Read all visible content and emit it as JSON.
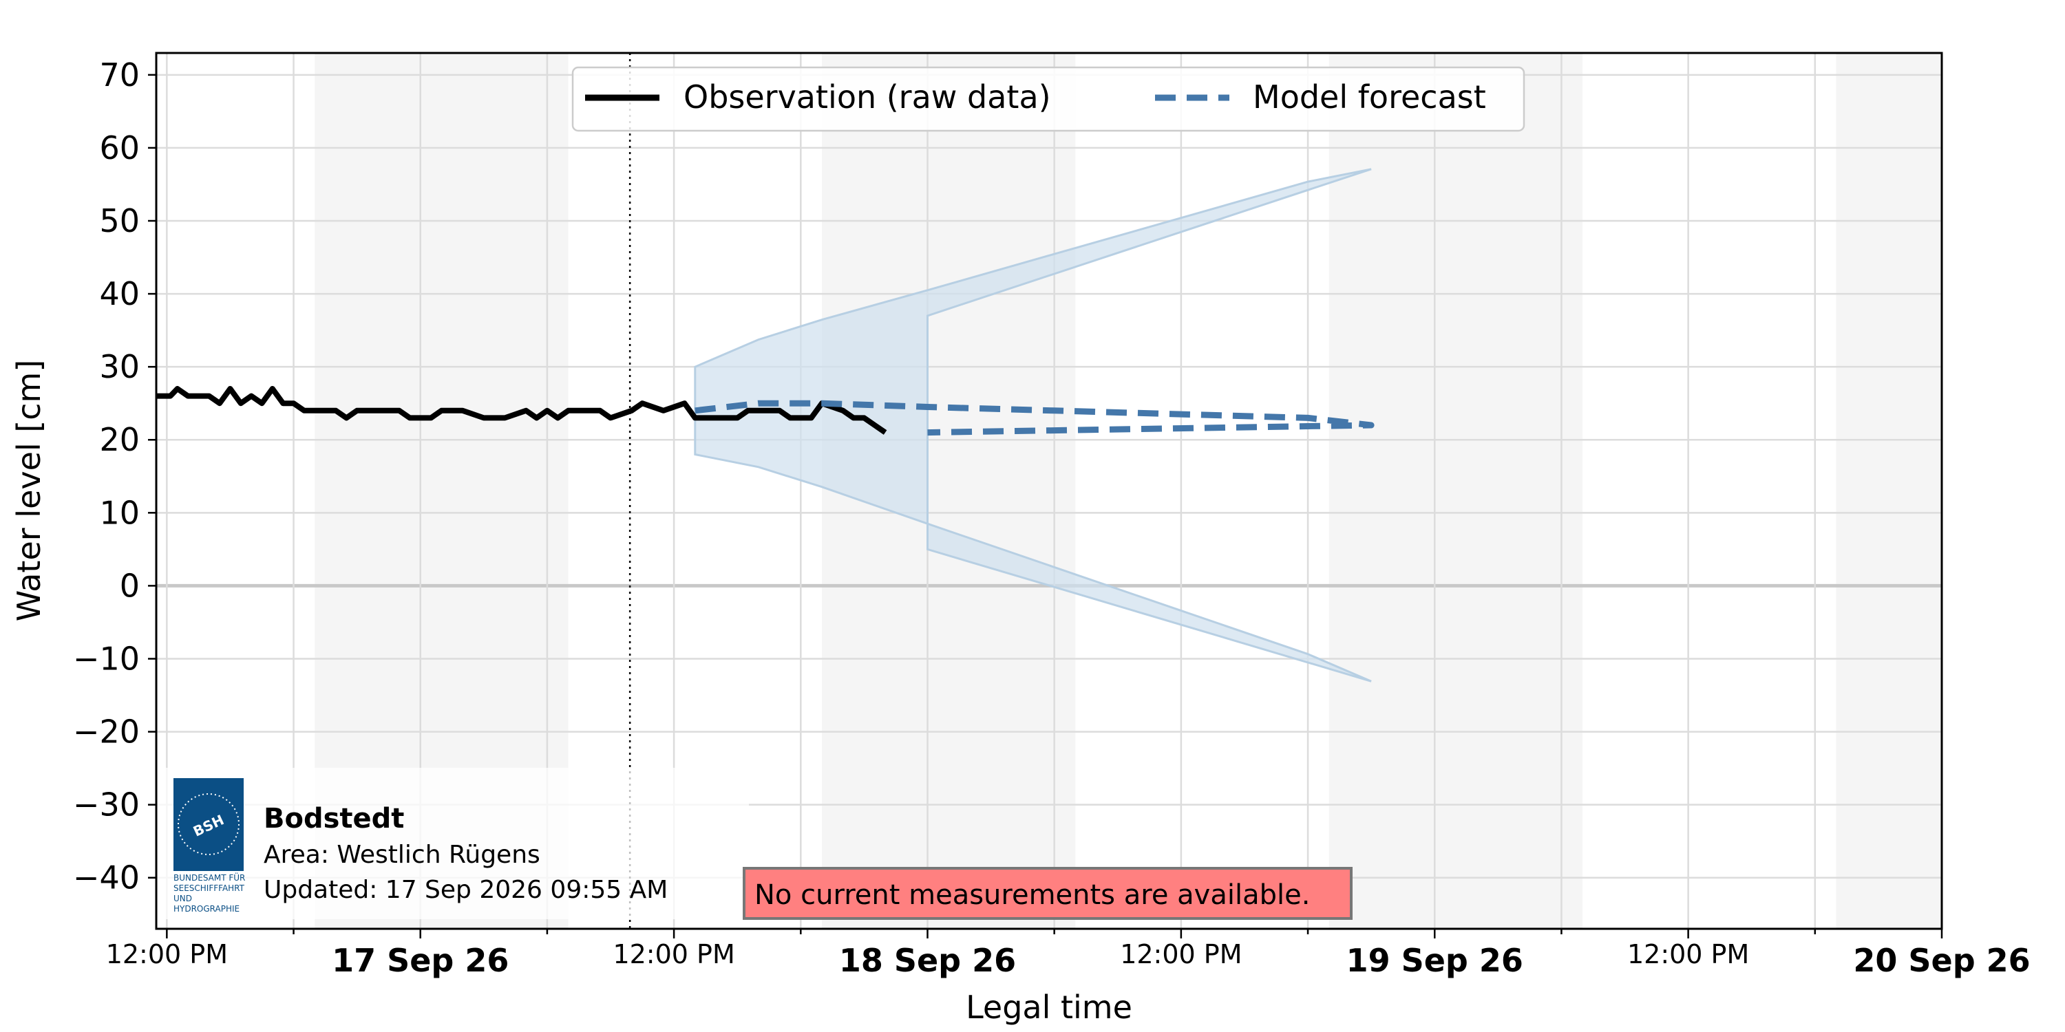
{
  "chart_data": {
    "type": "line",
    "xlabel": "Legal time",
    "ylabel": "Water level [cm]",
    "ylim": [
      -47,
      73
    ],
    "yticks": [
      70,
      60,
      50,
      40,
      30,
      20,
      10,
      0,
      -10,
      -20,
      -30,
      -40
    ],
    "xlim": [
      "2026-09-16 11:30",
      "2026-09-20 00:00"
    ],
    "xticks": [
      {
        "time": "2026-09-16 12:00",
        "label": "12:00 PM",
        "major": false
      },
      {
        "time": "2026-09-17 00:00",
        "label": "17 Sep 26",
        "major": true
      },
      {
        "time": "2026-09-17 12:00",
        "label": "12:00 PM",
        "major": false
      },
      {
        "time": "2026-09-18 00:00",
        "label": "18 Sep 26",
        "major": true
      },
      {
        "time": "2026-09-18 12:00",
        "label": "12:00 PM",
        "major": false
      },
      {
        "time": "2026-09-19 00:00",
        "label": "19 Sep 26",
        "major": true
      },
      {
        "time": "2026-09-19 12:00",
        "label": "12:00 PM",
        "major": false
      },
      {
        "time": "2026-09-20 00:00",
        "label": "20 Sep 26",
        "major": true
      }
    ],
    "night_bands": [
      [
        "2026-09-16 19:00",
        "2026-09-17 07:00"
      ],
      [
        "2026-09-17 19:00",
        "2026-09-18 07:00"
      ],
      [
        "2026-09-18 19:00",
        "2026-09-19 07:00"
      ],
      [
        "2026-09-19 19:00",
        "2026-09-20 00:00"
      ]
    ],
    "now_marker": "2026-09-17 09:55",
    "legend_position": "top-center",
    "series": [
      {
        "name": "Observation (raw data)",
        "style": "solid",
        "color": "#000000",
        "points": [
          [
            "2026-09-16 11:30",
            26
          ],
          [
            "2026-09-16 12:10",
            26
          ],
          [
            "2026-09-16 12:30",
            27
          ],
          [
            "2026-09-16 13:00",
            26
          ],
          [
            "2026-09-16 14:00",
            26
          ],
          [
            "2026-09-16 14:30",
            25
          ],
          [
            "2026-09-16 15:00",
            27
          ],
          [
            "2026-09-16 15:30",
            25
          ],
          [
            "2026-09-16 16:00",
            26
          ],
          [
            "2026-09-16 16:30",
            25
          ],
          [
            "2026-09-16 17:00",
            27
          ],
          [
            "2026-09-16 17:30",
            25
          ],
          [
            "2026-09-16 18:00",
            25
          ],
          [
            "2026-09-16 18:30",
            24
          ],
          [
            "2026-09-16 20:00",
            24
          ],
          [
            "2026-09-16 20:30",
            23
          ],
          [
            "2026-09-16 21:00",
            24
          ],
          [
            "2026-09-16 23:00",
            24
          ],
          [
            "2026-09-16 23:30",
            23
          ],
          [
            "2026-09-17 00:30",
            23
          ],
          [
            "2026-09-17 01:00",
            24
          ],
          [
            "2026-09-17 02:00",
            24
          ],
          [
            "2026-09-17 03:00",
            23
          ],
          [
            "2026-09-17 04:00",
            23
          ],
          [
            "2026-09-17 05:00",
            24
          ],
          [
            "2026-09-17 05:30",
            23
          ],
          [
            "2026-09-17 06:00",
            24
          ],
          [
            "2026-09-17 06:30",
            23
          ],
          [
            "2026-09-17 07:00",
            24
          ],
          [
            "2026-09-17 08:30",
            24
          ],
          [
            "2026-09-17 09:00",
            23
          ],
          [
            "2026-09-17 10:00",
            24
          ],
          [
            "2026-09-17 10:30",
            25
          ],
          [
            "2026-09-17 11:30",
            24
          ],
          [
            "2026-09-17 12:30",
            25
          ],
          [
            "2026-09-17 13:00",
            23
          ],
          [
            "2026-09-17 15:00",
            23
          ],
          [
            "2026-09-17 15:30",
            24
          ],
          [
            "2026-09-17 17:00",
            24
          ],
          [
            "2026-09-17 17:30",
            23
          ],
          [
            "2026-09-17 18:30",
            23
          ],
          [
            "2026-09-17 19:00",
            25
          ],
          [
            "2026-09-17 20:00",
            24
          ],
          [
            "2026-09-17 20:30",
            23
          ],
          [
            "2026-09-17 21:00",
            23
          ],
          [
            "2026-09-17 21:30",
            22
          ],
          [
            "2026-09-17 22:00",
            21
          ]
        ]
      },
      {
        "name": "Model forecast",
        "style": "dashed",
        "color": "#4477aa",
        "points": [
          [
            "2026-09-17 13:00",
            24.0
          ],
          [
            "2026-09-17 16:00",
            25.0
          ],
          [
            "2026-09-17 19:00",
            25.0
          ],
          [
            "2026-09-18 00:00",
            24.5
          ],
          [
            "2026-09-18 06:00",
            24.0
          ],
          [
            "2026-09-18 12:00",
            23.5
          ],
          [
            "2026-09-18 18:00",
            23.0
          ],
          [
            "2026-09-18 21:00",
            22.0
          ],
          [
            "2026-09-18 00:00",
            21.0
          ]
        ]
      }
    ],
    "forecast_band": {
      "color": "#cfe0ee",
      "upper": [],
      "lower": []
    }
  },
  "station": {
    "logo_text": "BSH",
    "logo_caption": [
      "BUNDESAMT FÜR",
      "SEESCHIFFFAHRT",
      "UND",
      "HYDROGRAPHIE"
    ],
    "name": "Bodstedt",
    "area": "Area: Westlich Rügens",
    "updated": "Updated: 17 Sep 2026 09:55 AM"
  },
  "warning": {
    "text": "No current measurements are available.",
    "color": "#ff8080"
  },
  "colors": {
    "night_band": "#f5f5f5",
    "grid": "#dcdcdc",
    "zero_line": "#c8c8c8"
  }
}
